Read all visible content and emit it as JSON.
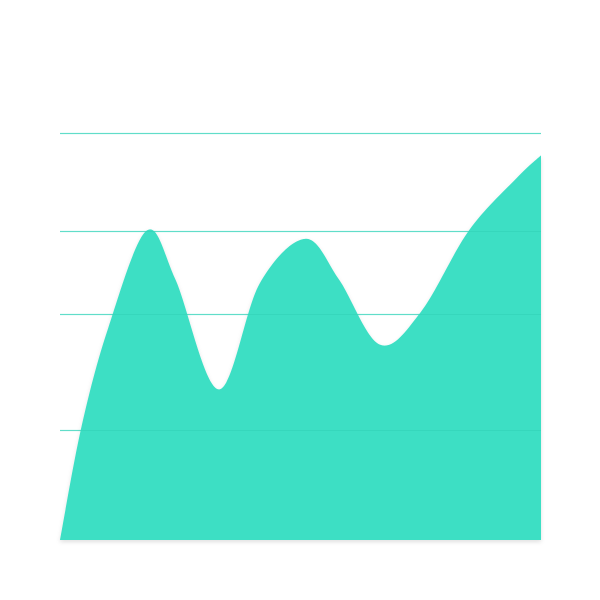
{
  "chart_data": {
    "type": "area",
    "title": "",
    "xlabel": "",
    "ylabel": "",
    "grid": true,
    "legend": "none",
    "ylim": [
      0,
      1
    ],
    "gridlines": [
      0.27,
      0.555,
      0.76,
      1.0
    ],
    "series": [
      {
        "points": [
          {
            "x": 0.0,
            "y": 0.0
          },
          {
            "x": 0.045,
            "y": 0.28
          },
          {
            "x": 0.1,
            "y": 0.52
          },
          {
            "x": 0.18,
            "y": 0.76
          },
          {
            "x": 0.24,
            "y": 0.64
          },
          {
            "x": 0.33,
            "y": 0.37
          },
          {
            "x": 0.415,
            "y": 0.63
          },
          {
            "x": 0.51,
            "y": 0.74
          },
          {
            "x": 0.58,
            "y": 0.64
          },
          {
            "x": 0.665,
            "y": 0.48
          },
          {
            "x": 0.75,
            "y": 0.56
          },
          {
            "x": 0.85,
            "y": 0.76
          },
          {
            "x": 0.95,
            "y": 0.89
          },
          {
            "x": 1.0,
            "y": 0.945
          }
        ]
      }
    ]
  },
  "colors": {
    "area": "#3ddfc4",
    "grid": "#7fe8d8",
    "background": "#ffffff"
  }
}
